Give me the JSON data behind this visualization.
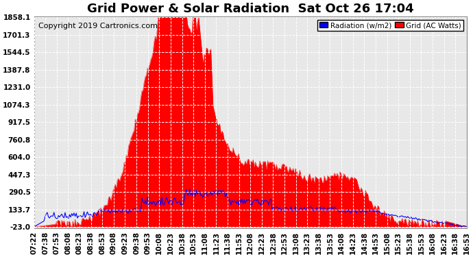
{
  "title": "Grid Power & Solar Radiation  Sat Oct 26 17:04",
  "copyright": "Copyright 2019 Cartronics.com",
  "yticks": [
    -23.0,
    133.7,
    290.5,
    447.3,
    604.0,
    760.8,
    917.5,
    1074.3,
    1231.0,
    1387.8,
    1544.5,
    1701.3,
    1858.1
  ],
  "ymin": -23.0,
  "ymax": 1858.1,
  "legend_radiation_label": "Radiation (w/m2)",
  "legend_grid_label": "Grid (AC Watts)",
  "legend_radiation_facecolor": "#0000ff",
  "legend_grid_facecolor": "#ff0000",
  "bg_color": "#ffffff",
  "plot_bg_color": "#e8e8e8",
  "grid_color": "#ffffff",
  "fill_color": "#ff0000",
  "line_color": "#0000ff",
  "title_fontsize": 13,
  "copyright_fontsize": 8,
  "tick_fontsize": 7.5,
  "x_tick_labels": [
    "07:22",
    "07:38",
    "07:53",
    "08:08",
    "08:23",
    "08:38",
    "08:53",
    "09:08",
    "09:23",
    "09:38",
    "09:53",
    "10:08",
    "10:23",
    "10:38",
    "10:53",
    "11:08",
    "11:23",
    "11:38",
    "11:53",
    "12:08",
    "12:23",
    "12:38",
    "12:53",
    "13:08",
    "13:23",
    "13:38",
    "13:53",
    "14:08",
    "14:23",
    "14:38",
    "14:53",
    "15:08",
    "15:23",
    "15:38",
    "15:53",
    "16:08",
    "16:23",
    "16:38",
    "16:53"
  ]
}
